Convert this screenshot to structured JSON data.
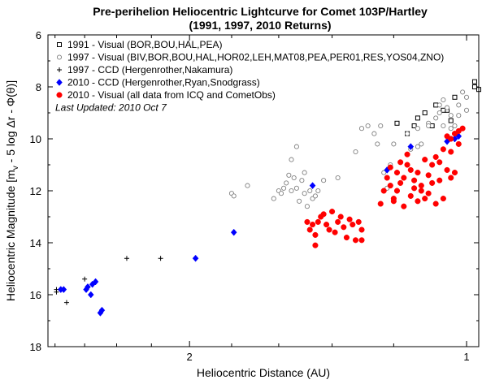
{
  "chart_data": {
    "type": "scatter",
    "title": [
      "Pre-perihelion Heliocentric Lightcurve for Comet 103P/Hartley",
      "(1991, 1997, 2010 Returns)"
    ],
    "xlabel": "Heliocentric Distance (AU)",
    "ylabel": "Heliocentric Magnitude [m",
    "ylabel_sub": "v",
    "ylabel_rest": " - 5 log Δr - Φ(θ)]",
    "x_scale": "log",
    "x_reversed": true,
    "xlim": [
      2.85,
      0.97
    ],
    "ylim": [
      18,
      6
    ],
    "y_reversed": true,
    "x_ticks": [
      {
        "value": 2,
        "label": "2"
      },
      {
        "value": 1,
        "label": "1"
      }
    ],
    "y_ticks": [
      {
        "value": 6,
        "label": "6"
      },
      {
        "value": 8,
        "label": "8"
      },
      {
        "value": 10,
        "label": "10"
      },
      {
        "value": 12,
        "label": "12"
      },
      {
        "value": 14,
        "label": "14"
      },
      {
        "value": 16,
        "label": "16"
      },
      {
        "value": 18,
        "label": "18"
      }
    ],
    "legend_placement": "top-left",
    "last_updated": "Last Updated: 2010 Oct 7",
    "series": [
      {
        "name": "1991 - Visual (BOR,BOU,HAL,PEA)",
        "marker": "open-square",
        "color": "#000000",
        "points": [
          [
            1.19,
            9.4
          ],
          [
            1.13,
            9.2
          ],
          [
            1.16,
            9.8
          ],
          [
            1.11,
            9.0
          ],
          [
            1.08,
            8.7
          ],
          [
            1.05,
            8.9
          ],
          [
            1.03,
            8.4
          ],
          [
            1.04,
            9.3
          ],
          [
            1.09,
            9.5
          ],
          [
            1.06,
            8.9
          ],
          [
            0.98,
            8.0
          ],
          [
            0.97,
            8.1
          ],
          [
            0.98,
            7.8
          ],
          [
            1.14,
            9.5
          ]
        ]
      },
      {
        "name": "1997 - Visual (BIV,BOR,BOU,HAL,HOR02,LEH,MAT08,PEA,PER01,RES,YOS04,ZNO)",
        "marker": "open-circle",
        "color": "#808080",
        "points": [
          [
            1.8,
            12.1
          ],
          [
            1.79,
            12.2
          ],
          [
            1.73,
            11.8
          ],
          [
            1.62,
            12.3
          ],
          [
            1.6,
            12.0
          ],
          [
            1.59,
            12.1
          ],
          [
            1.58,
            11.9
          ],
          [
            1.57,
            11.7
          ],
          [
            1.56,
            11.4
          ],
          [
            1.55,
            10.8
          ],
          [
            1.55,
            12.0
          ],
          [
            1.54,
            11.5
          ],
          [
            1.53,
            11.9
          ],
          [
            1.53,
            10.3
          ],
          [
            1.52,
            12.4
          ],
          [
            1.51,
            11.6
          ],
          [
            1.5,
            11.3
          ],
          [
            1.5,
            12.1
          ],
          [
            1.49,
            12.6
          ],
          [
            1.48,
            12.0
          ],
          [
            1.47,
            12.3
          ],
          [
            1.46,
            12.2
          ],
          [
            1.45,
            12.0
          ],
          [
            1.43,
            11.6
          ],
          [
            1.38,
            11.5
          ],
          [
            1.32,
            10.5
          ],
          [
            1.3,
            9.6
          ],
          [
            1.28,
            9.5
          ],
          [
            1.26,
            9.8
          ],
          [
            1.25,
            10.2
          ],
          [
            1.24,
            9.5
          ],
          [
            1.23,
            11.3
          ],
          [
            1.22,
            11.9
          ],
          [
            1.21,
            11.0
          ],
          [
            1.2,
            10.2
          ],
          [
            1.16,
            9.8
          ],
          [
            1.15,
            10.4
          ],
          [
            1.13,
            10.3
          ],
          [
            1.12,
            10.2
          ],
          [
            1.1,
            9.4
          ],
          [
            1.08,
            9.2
          ],
          [
            1.07,
            9.0
          ],
          [
            1.06,
            9.5
          ],
          [
            1.05,
            8.8
          ],
          [
            1.04,
            9.1
          ],
          [
            1.03,
            9.5
          ],
          [
            1.02,
            8.7
          ],
          [
            1.01,
            8.2
          ],
          [
            1.0,
            8.4
          ],
          [
            1.0,
            8.9
          ],
          [
            1.02,
            9.1
          ],
          [
            1.04,
            9.6
          ],
          [
            1.06,
            8.5
          ],
          [
            1.1,
            9.5
          ],
          [
            1.13,
            9.6
          ],
          [
            1.07,
            8.7
          ]
        ]
      },
      {
        "name": "1997 - CCD (Hergenrother,Nakamura)",
        "marker": "plus",
        "color": "#000000",
        "points": [
          [
            2.79,
            15.8
          ],
          [
            2.79,
            15.9
          ],
          [
            2.72,
            16.3
          ],
          [
            2.6,
            15.4
          ],
          [
            2.34,
            14.6
          ],
          [
            2.15,
            14.6
          ]
        ]
      },
      {
        "name": "2010 - CCD (Hergenrother,Ryan,Snodgrass)",
        "marker": "filled-diamond",
        "color": "#0000ff",
        "points": [
          [
            2.76,
            15.8
          ],
          [
            2.74,
            15.8
          ],
          [
            2.59,
            15.8
          ],
          [
            2.58,
            15.7
          ],
          [
            2.56,
            16.0
          ],
          [
            2.55,
            15.6
          ],
          [
            2.53,
            15.5
          ],
          [
            2.5,
            16.7
          ],
          [
            2.49,
            16.6
          ],
          [
            1.97,
            14.6
          ],
          [
            1.79,
            13.6
          ],
          [
            1.47,
            11.8
          ],
          [
            1.22,
            11.2
          ],
          [
            1.15,
            10.3
          ],
          [
            1.05,
            10.1
          ],
          [
            1.03,
            10.0
          ],
          [
            1.02,
            9.9
          ]
        ]
      },
      {
        "name": "2010 - Visual (all data from ICQ and CometObs)",
        "marker": "filled-circle",
        "color": "#ff0000",
        "points": [
          [
            1.49,
            13.2
          ],
          [
            1.48,
            13.5
          ],
          [
            1.47,
            13.3
          ],
          [
            1.46,
            13.7
          ],
          [
            1.45,
            13.2
          ],
          [
            1.44,
            13.0
          ],
          [
            1.43,
            12.9
          ],
          [
            1.42,
            13.3
          ],
          [
            1.41,
            13.5
          ],
          [
            1.4,
            12.8
          ],
          [
            1.39,
            13.6
          ],
          [
            1.38,
            13.2
          ],
          [
            1.37,
            13.0
          ],
          [
            1.36,
            13.4
          ],
          [
            1.35,
            13.8
          ],
          [
            1.34,
            13.1
          ],
          [
            1.33,
            13.3
          ],
          [
            1.32,
            13.9
          ],
          [
            1.31,
            13.2
          ],
          [
            1.3,
            13.5
          ],
          [
            1.46,
            14.1
          ],
          [
            1.3,
            13.9
          ],
          [
            1.24,
            12.5
          ],
          [
            1.23,
            12.0
          ],
          [
            1.22,
            11.5
          ],
          [
            1.21,
            11.8
          ],
          [
            1.2,
            12.3
          ],
          [
            1.19,
            11.3
          ],
          [
            1.18,
            11.7
          ],
          [
            1.17,
            12.6
          ],
          [
            1.16,
            11.0
          ],
          [
            1.15,
            12.2
          ],
          [
            1.14,
            11.6
          ],
          [
            1.13,
            11.3
          ],
          [
            1.12,
            12.0
          ],
          [
            1.12,
            11.8
          ],
          [
            1.11,
            10.8
          ],
          [
            1.1,
            11.4
          ],
          [
            1.1,
            12.1
          ],
          [
            1.09,
            11.0
          ],
          [
            1.08,
            10.7
          ],
          [
            1.08,
            12.5
          ],
          [
            1.07,
            11.6
          ],
          [
            1.06,
            10.4
          ],
          [
            1.06,
            12.3
          ],
          [
            1.05,
            11.2
          ],
          [
            1.04,
            10.5
          ],
          [
            1.04,
            10.0
          ],
          [
            1.03,
            9.8
          ],
          [
            1.02,
            10.2
          ],
          [
            1.02,
            9.7
          ],
          [
            1.01,
            9.6
          ],
          [
            1.05,
            9.9
          ],
          [
            1.03,
            11.3
          ],
          [
            1.04,
            11.5
          ],
          [
            1.07,
            10.9
          ],
          [
            1.09,
            11.7
          ],
          [
            1.11,
            12.3
          ],
          [
            1.13,
            12.4
          ],
          [
            1.16,
            10.6
          ],
          [
            1.18,
            10.9
          ],
          [
            1.2,
            12.4
          ],
          [
            1.21,
            11.1
          ],
          [
            1.14,
            11.9
          ],
          [
            1.19,
            12.0
          ],
          [
            1.15,
            11.2
          ],
          [
            1.17,
            11.5
          ]
        ]
      }
    ]
  }
}
